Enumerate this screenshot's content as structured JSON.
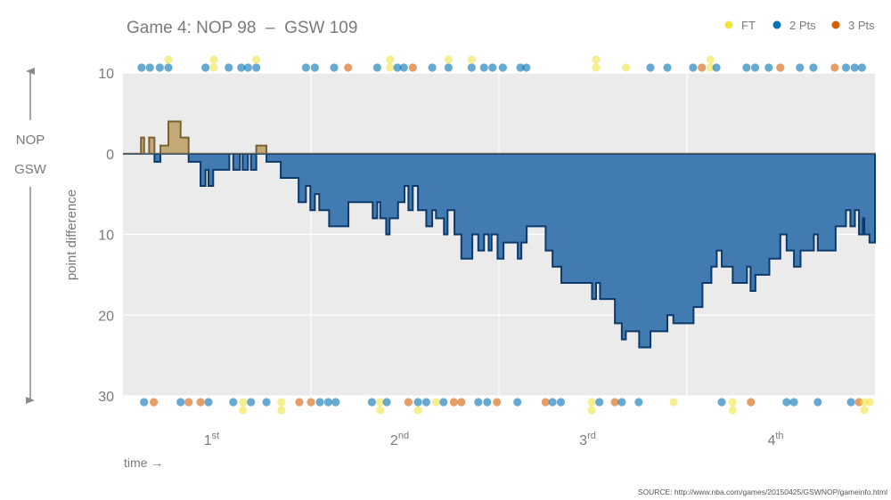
{
  "chart_data": {
    "type": "area",
    "title": "Game 4: NOP 98  –  GSW 109",
    "xlabel": "time →",
    "ylabel": "point difference",
    "source": "SOURCE: http://www.nba.com/games/20150425/GSWNOP/gameinfo.html",
    "team_up": "NOP",
    "team_down": "GSW",
    "xlim_minutes": [
      0,
      48
    ],
    "ylim_gsw_lead": [
      -10,
      30
    ],
    "y_ticks": [
      -10,
      0,
      10,
      20,
      30
    ],
    "y_tick_labels": [
      "10",
      "0",
      "10",
      "20",
      "30"
    ],
    "quarters": [
      {
        "num": "1",
        "sup": "st"
      },
      {
        "num": "2",
        "sup": "nd"
      },
      {
        "num": "3",
        "sup": "rd"
      },
      {
        "num": "4",
        "sup": "th"
      }
    ],
    "grid": true,
    "colors": {
      "nop_fill": "#c4a978",
      "nop_stroke": "#7a6130",
      "gsw_fill": "#3b77b0",
      "gsw_stroke": "#0c3a6c",
      "ft": "#f0e442",
      "two": "#0072b2",
      "three": "#d55e00",
      "panel": "#ebebeb"
    },
    "legend": {
      "placement": "top-right",
      "items": [
        {
          "label": "FT",
          "type": "FT"
        },
        {
          "label": "2 Pts",
          "type": "2"
        },
        {
          "label": "3 Pts",
          "type": "3"
        }
      ]
    },
    "margin_series_note_sign": "positive = GSW lead",
    "margin_steps": [
      [
        0,
        0
      ],
      [
        1.15,
        -2
      ],
      [
        1.35,
        0
      ],
      [
        1.67,
        -2
      ],
      [
        2.01,
        1
      ],
      [
        2.39,
        -1
      ],
      [
        2.9,
        -4
      ],
      [
        3.68,
        -2
      ],
      [
        4.19,
        1
      ],
      [
        4.95,
        4
      ],
      [
        5.27,
        2
      ],
      [
        5.46,
        4
      ],
      [
        5.76,
        2
      ],
      [
        6.79,
        0
      ],
      [
        7.04,
        2
      ],
      [
        7.47,
        0
      ],
      [
        7.64,
        2
      ],
      [
        7.98,
        0
      ],
      [
        8.17,
        2
      ],
      [
        8.51,
        -1
      ],
      [
        9.16,
        1
      ],
      [
        10.07,
        3
      ],
      [
        11.21,
        6
      ],
      [
        11.68,
        4
      ],
      [
        11.96,
        7
      ],
      [
        12.25,
        5
      ],
      [
        12.53,
        7
      ],
      [
        13.16,
        9
      ],
      [
        14.39,
        6
      ],
      [
        15.94,
        8
      ],
      [
        16.23,
        6
      ],
      [
        16.42,
        8
      ],
      [
        16.8,
        10
      ],
      [
        17.02,
        8
      ],
      [
        17.56,
        6
      ],
      [
        17.97,
        4
      ],
      [
        18.22,
        7
      ],
      [
        18.5,
        4
      ],
      [
        18.83,
        7
      ],
      [
        19.36,
        9
      ],
      [
        19.74,
        7
      ],
      [
        19.98,
        8
      ],
      [
        20.49,
        10
      ],
      [
        20.72,
        7
      ],
      [
        21.16,
        10
      ],
      [
        21.6,
        13
      ],
      [
        22.3,
        10
      ],
      [
        22.68,
        12
      ],
      [
        23.05,
        10
      ],
      [
        23.34,
        12
      ],
      [
        23.53,
        10
      ],
      [
        23.91,
        13
      ],
      [
        24.29,
        11
      ],
      [
        25.2,
        13
      ],
      [
        25.43,
        11
      ],
      [
        25.77,
        9
      ],
      [
        26.98,
        12
      ],
      [
        27.42,
        14
      ],
      [
        27.98,
        16
      ],
      [
        29.94,
        18
      ],
      [
        30.2,
        16
      ],
      [
        30.45,
        18
      ],
      [
        31.4,
        21
      ],
      [
        31.84,
        23
      ],
      [
        32.1,
        22
      ],
      [
        32.95,
        24
      ],
      [
        33.67,
        22
      ],
      [
        34.75,
        20
      ],
      [
        35.13,
        21
      ],
      [
        36.42,
        19
      ],
      [
        36.99,
        16
      ],
      [
        37.56,
        14
      ],
      [
        37.9,
        12
      ],
      [
        38.22,
        14
      ],
      [
        38.92,
        16
      ],
      [
        39.83,
        14
      ],
      [
        40.06,
        17
      ],
      [
        40.37,
        15
      ],
      [
        41.26,
        13
      ],
      [
        41.96,
        10
      ],
      [
        42.36,
        12
      ],
      [
        42.83,
        14
      ],
      [
        43.25,
        12
      ],
      [
        44.1,
        10
      ],
      [
        44.35,
        12
      ],
      [
        45.49,
        9
      ],
      [
        46.15,
        7
      ],
      [
        46.43,
        9
      ],
      [
        46.72,
        7
      ],
      [
        46.98,
        10
      ],
      [
        47.23,
        8
      ],
      [
        47.32,
        10
      ],
      [
        47.65,
        11
      ],
      [
        48,
        11
      ]
    ],
    "nop_scores": [
      [
        1.19,
        "2"
      ],
      [
        1.72,
        "2"
      ],
      [
        2.35,
        "2"
      ],
      [
        2.9,
        "2"
      ],
      [
        2.9,
        "FT"
      ],
      [
        5.27,
        "2"
      ],
      [
        5.8,
        "FT"
      ],
      [
        5.8,
        "FT"
      ],
      [
        6.75,
        "2"
      ],
      [
        7.55,
        "2"
      ],
      [
        7.98,
        "2"
      ],
      [
        8.51,
        "2"
      ],
      [
        8.51,
        "FT"
      ],
      [
        11.68,
        "2"
      ],
      [
        12.25,
        "2"
      ],
      [
        13.48,
        "2"
      ],
      [
        14.37,
        "3"
      ],
      [
        16.23,
        "2"
      ],
      [
        17.05,
        "FT"
      ],
      [
        17.05,
        "FT"
      ],
      [
        17.52,
        "2"
      ],
      [
        17.93,
        "2"
      ],
      [
        18.5,
        "3"
      ],
      [
        19.74,
        "2"
      ],
      [
        20.78,
        "2"
      ],
      [
        20.78,
        "FT"
      ],
      [
        22.26,
        "2"
      ],
      [
        22.26,
        "FT"
      ],
      [
        23.05,
        "2"
      ],
      [
        23.59,
        "2"
      ],
      [
        24.25,
        "2"
      ],
      [
        25.37,
        "2"
      ],
      [
        25.75,
        "2"
      ],
      [
        30.2,
        "FT"
      ],
      [
        30.2,
        "FT"
      ],
      [
        32.12,
        "FT"
      ],
      [
        33.67,
        "2"
      ],
      [
        34.75,
        "2"
      ],
      [
        36.39,
        "2"
      ],
      [
        36.95,
        "3"
      ],
      [
        37.5,
        "FT"
      ],
      [
        37.5,
        "FT"
      ],
      [
        37.88,
        "2"
      ],
      [
        39.8,
        "2"
      ],
      [
        40.35,
        "2"
      ],
      [
        41.22,
        "2"
      ],
      [
        41.96,
        "3"
      ],
      [
        43.21,
        "2"
      ],
      [
        44.07,
        "2"
      ],
      [
        45.43,
        "3"
      ],
      [
        46.15,
        "2"
      ],
      [
        46.7,
        "2"
      ],
      [
        47.17,
        "2"
      ]
    ],
    "gsw_scores": [
      [
        1.35,
        "2"
      ],
      [
        1.97,
        "3"
      ],
      [
        3.68,
        "2"
      ],
      [
        4.19,
        "3"
      ],
      [
        4.95,
        "3"
      ],
      [
        5.46,
        "2"
      ],
      [
        7.04,
        "2"
      ],
      [
        7.66,
        "FT"
      ],
      [
        7.66,
        "FT"
      ],
      [
        8.17,
        "2"
      ],
      [
        9.16,
        "2"
      ],
      [
        10.11,
        "FT"
      ],
      [
        10.11,
        "FT"
      ],
      [
        11.26,
        "3"
      ],
      [
        12.0,
        "3"
      ],
      [
        12.57,
        "2"
      ],
      [
        13.1,
        "2"
      ],
      [
        13.58,
        "2"
      ],
      [
        15.89,
        "2"
      ],
      [
        16.42,
        "FT"
      ],
      [
        16.42,
        "FT"
      ],
      [
        16.84,
        "2"
      ],
      [
        18.22,
        "3"
      ],
      [
        18.83,
        "2"
      ],
      [
        18.83,
        "FT"
      ],
      [
        19.36,
        "2"
      ],
      [
        19.98,
        "FT"
      ],
      [
        20.46,
        "2"
      ],
      [
        21.12,
        "3"
      ],
      [
        21.6,
        "3"
      ],
      [
        22.68,
        "2"
      ],
      [
        23.25,
        "2"
      ],
      [
        23.87,
        "3"
      ],
      [
        25.18,
        "2"
      ],
      [
        26.98,
        "3"
      ],
      [
        27.42,
        "2"
      ],
      [
        27.95,
        "2"
      ],
      [
        29.92,
        "FT"
      ],
      [
        29.92,
        "FT"
      ],
      [
        30.41,
        "2"
      ],
      [
        31.4,
        "3"
      ],
      [
        31.84,
        "2"
      ],
      [
        32.92,
        "2"
      ],
      [
        35.15,
        "FT"
      ],
      [
        38.22,
        "2"
      ],
      [
        38.91,
        "FT"
      ],
      [
        38.91,
        "FT"
      ],
      [
        40.08,
        "3"
      ],
      [
        42.36,
        "2"
      ],
      [
        42.83,
        "2"
      ],
      [
        44.35,
        "2"
      ],
      [
        46.47,
        "2"
      ],
      [
        46.98,
        "3"
      ],
      [
        47.32,
        "FT"
      ],
      [
        47.32,
        "FT"
      ],
      [
        47.67,
        "FT"
      ]
    ]
  }
}
